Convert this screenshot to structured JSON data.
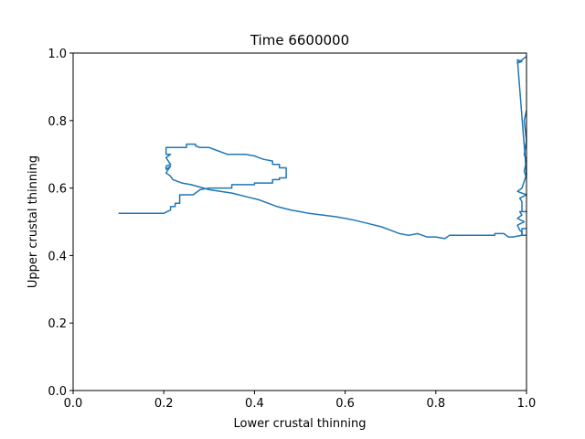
{
  "chart_data": {
    "type": "line",
    "title": "Time 6600000",
    "xlabel": "Lower crustal thinning",
    "ylabel": "Upper crustal thinning",
    "xlim": [
      0.0,
      1.0
    ],
    "ylim": [
      0.0,
      1.0
    ],
    "x_ticks": [
      "0.0",
      "0.2",
      "0.4",
      "0.6",
      "0.8",
      "1.0"
    ],
    "y_ticks": [
      "0.0",
      "0.2",
      "0.4",
      "0.6",
      "0.8",
      "1.0"
    ],
    "grid": false,
    "legend": "none",
    "line_color": "#1f77b4",
    "series": [
      {
        "x": [
          0.1,
          0.2,
          0.215,
          0.215,
          0.225,
          0.225,
          0.235,
          0.235,
          0.265,
          0.28,
          0.3,
          0.33,
          0.33,
          0.35,
          0.35,
          0.4,
          0.4,
          0.44,
          0.44,
          0.455,
          0.455,
          0.47,
          0.47,
          0.455,
          0.455,
          0.44,
          0.44,
          0.42,
          0.41,
          0.4,
          0.38,
          0.34,
          0.32,
          0.3,
          0.28,
          0.27,
          0.27,
          0.25,
          0.25,
          0.205,
          0.205,
          0.215,
          0.205,
          0.215,
          0.205,
          0.205,
          0.215,
          0.205,
          0.215,
          0.22,
          0.24,
          0.26,
          0.3,
          0.35,
          0.38,
          0.41,
          0.43,
          0.45,
          0.48,
          0.5,
          0.52,
          0.55,
          0.58,
          0.62,
          0.65,
          0.68,
          0.7,
          0.72,
          0.74,
          0.76,
          0.78,
          0.8,
          0.82,
          0.83,
          0.86,
          0.9,
          0.93,
          0.93,
          0.95,
          0.96,
          0.97,
          0.99,
          0.99,
          1.0
        ],
        "y": [
          0.525,
          0.525,
          0.535,
          0.545,
          0.545,
          0.555,
          0.555,
          0.58,
          0.58,
          0.595,
          0.6,
          0.6,
          0.6,
          0.6,
          0.61,
          0.61,
          0.615,
          0.615,
          0.625,
          0.625,
          0.63,
          0.63,
          0.66,
          0.66,
          0.67,
          0.67,
          0.68,
          0.685,
          0.69,
          0.695,
          0.7,
          0.7,
          0.71,
          0.72,
          0.72,
          0.725,
          0.73,
          0.73,
          0.72,
          0.72,
          0.7,
          0.7,
          0.69,
          0.67,
          0.665,
          0.655,
          0.665,
          0.645,
          0.635,
          0.625,
          0.615,
          0.61,
          0.595,
          0.585,
          0.575,
          0.565,
          0.555,
          0.545,
          0.535,
          0.53,
          0.525,
          0.52,
          0.515,
          0.505,
          0.495,
          0.485,
          0.475,
          0.465,
          0.46,
          0.465,
          0.455,
          0.455,
          0.45,
          0.46,
          0.46,
          0.46,
          0.46,
          0.465,
          0.465,
          0.455,
          0.455,
          0.46,
          0.48,
          0.48
        ]
      },
      {
        "x": [
          1.0,
          0.99,
          0.99,
          0.985,
          0.98,
          0.995,
          0.98,
          0.99,
          0.985,
          1.0,
          0.99,
          0.99,
          0.985,
          1.0,
          0.98,
          0.99,
          0.99,
          1.0,
          0.98,
          0.99,
          0.98,
          1.0
        ],
        "y": [
          0.46,
          0.46,
          0.47,
          0.475,
          0.49,
          0.5,
          0.51,
          0.52,
          0.53,
          0.53,
          0.53,
          0.56,
          0.57,
          0.58,
          0.59,
          0.6,
          0.6,
          0.64,
          0.98,
          0.975,
          0.97,
          0.99
        ]
      },
      {
        "x": [
          1.0,
          0.995,
          1.0,
          0.995,
          1.0,
          0.995,
          1.0
        ],
        "y": [
          0.63,
          0.65,
          0.68,
          0.7,
          0.74,
          0.8,
          0.83
        ]
      }
    ]
  }
}
